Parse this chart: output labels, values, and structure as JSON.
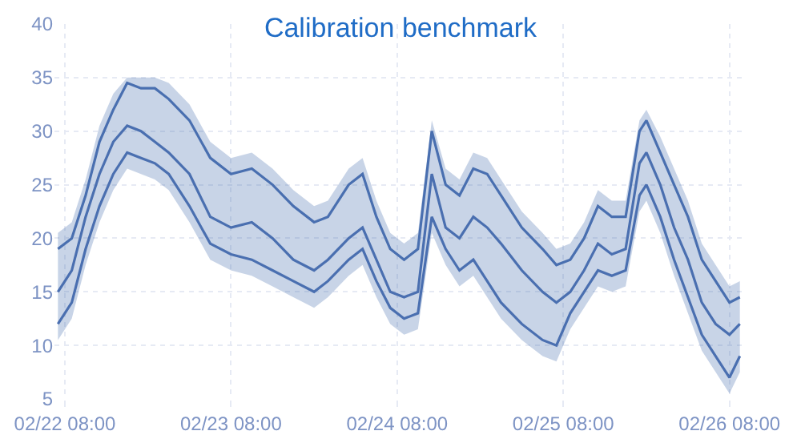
{
  "chart_data": {
    "type": "line",
    "title": "Calibration benchmark",
    "x": [
      "--02-22T07:00",
      "--02-22T09:00",
      "--02-22T11:00",
      "--02-22T13:00",
      "--02-22T15:00",
      "--02-22T17:00",
      "--02-22T19:00",
      "--02-22T21:00",
      "--02-22T23:00",
      "--02-23T02:00",
      "--02-23T05:00",
      "--02-23T08:00",
      "--02-23T11:00",
      "--02-23T14:00",
      "--02-23T17:00",
      "--02-23T20:00",
      "--02-23T22:00",
      "--02-24T01:00",
      "--02-24T03:00",
      "--02-24T05:00",
      "--02-24T07:00",
      "--02-24T09:00",
      "--02-24T11:00",
      "--02-24T13:00",
      "--02-24T15:00",
      "--02-24T17:00",
      "--02-24T19:00",
      "--02-24T21:00",
      "--02-24T23:00",
      "--02-25T02:00",
      "--02-25T05:00",
      "--02-25T07:00",
      "--02-25T09:00",
      "--02-25T11:00",
      "--02-25T13:00",
      "--02-25T15:00",
      "--02-25T17:00",
      "--02-25T19:00",
      "--02-25T20:00",
      "--02-25T22:00",
      "--02-26T00:00",
      "--02-26T02:00",
      "--02-26T04:00",
      "--02-26T06:00",
      "--02-26T08:00",
      "--02-26T09:30"
    ],
    "series": [
      {
        "color": "#4a6fb0",
        "values": [
          19,
          20,
          24,
          29,
          32,
          34.5,
          34,
          34,
          33,
          31,
          27.5,
          26,
          26.5,
          25,
          23,
          21.5,
          22,
          25,
          26,
          22,
          19,
          18,
          19,
          30,
          25,
          24,
          26.5,
          26,
          24,
          21,
          19,
          17.5,
          18,
          20,
          23,
          22,
          22,
          30,
          31,
          28,
          25,
          22,
          18,
          16,
          14,
          14.5
        ]
      },
      {
        "color": "#4a6fb0",
        "values": [
          15,
          17,
          22,
          26,
          29,
          30.5,
          30,
          29,
          28,
          26,
          22,
          21,
          21.5,
          20,
          18,
          17,
          18,
          20,
          21,
          18,
          15,
          14.5,
          15,
          26,
          21,
          20,
          22,
          21,
          19.5,
          17,
          15,
          14,
          15,
          17,
          19.5,
          18.5,
          19,
          27,
          28,
          25,
          21,
          18,
          14,
          12,
          11,
          12
        ],
        "lower": [
          10.5,
          12.5,
          17.5,
          21.5,
          24.5,
          26.5,
          26,
          25.5,
          24.5,
          21.5,
          18,
          17,
          16.5,
          15.5,
          14.5,
          13.5,
          14.5,
          16.5,
          17.5,
          14.5,
          12,
          11,
          11.5,
          20.5,
          17.5,
          15.5,
          16.5,
          14.5,
          12.5,
          10.5,
          9,
          8.5,
          11.5,
          13.5,
          15.5,
          15,
          15.5,
          22.5,
          23.5,
          20.5,
          16.5,
          13,
          9.5,
          7.5,
          5.5,
          7.5
        ],
        "upper": [
          20.5,
          21.5,
          25.5,
          30.5,
          33.5,
          35,
          35,
          35,
          34.5,
          32.5,
          29,
          27.5,
          28,
          26.5,
          24.5,
          23,
          23.5,
          26.5,
          27.5,
          23.5,
          20.5,
          19.5,
          20.5,
          31,
          26.5,
          25.5,
          28,
          27.5,
          25.5,
          22.5,
          20.5,
          19,
          19.5,
          21.5,
          24.5,
          23.5,
          23.5,
          31,
          32,
          29.5,
          26.5,
          23.5,
          19.5,
          17.5,
          15.5,
          16
        ]
      },
      {
        "color": "#4a6fb0",
        "values": [
          12,
          14,
          19,
          23,
          26,
          28,
          27.5,
          27,
          26,
          23,
          19.5,
          18.5,
          18,
          17,
          16,
          15,
          16,
          18,
          19,
          16,
          13.5,
          12.5,
          13,
          22,
          19,
          17,
          18,
          16,
          14,
          12,
          10.5,
          10,
          13,
          15,
          17,
          16.5,
          17,
          24,
          25,
          22,
          18,
          14.5,
          11,
          9,
          7,
          9
        ]
      }
    ],
    "xlim": [
      "--02-22T06:30",
      "--02-26T10:00"
    ],
    "xticks": [
      {
        "value": "--02-22T08:00",
        "label": "02/22 08:00"
      },
      {
        "value": "--02-23T08:00",
        "label": "02/23 08:00"
      },
      {
        "value": "--02-24T08:00",
        "label": "02/24 08:00"
      },
      {
        "value": "--02-25T08:00",
        "label": "02/25 08:00"
      },
      {
        "value": "--02-26T08:00",
        "label": "02/26 08:00"
      }
    ],
    "ylim": [
      5,
      40
    ],
    "yticks": [
      5,
      10,
      15,
      20,
      25,
      30,
      35,
      40
    ],
    "grid": true,
    "marker": "none",
    "line_style": "solid"
  }
}
